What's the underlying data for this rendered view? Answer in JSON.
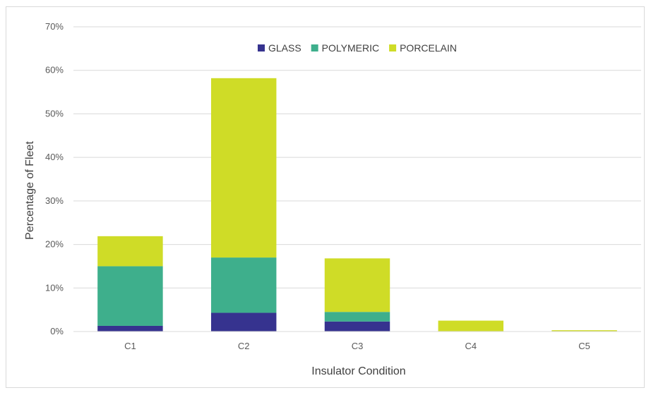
{
  "chart_data": {
    "type": "bar",
    "stacked": true,
    "categories": [
      "C1",
      "C2",
      "C3",
      "C4",
      "C5"
    ],
    "series": [
      {
        "name": "GLASS",
        "color": "#36338f",
        "values": [
          1.3,
          4.3,
          2.3,
          0.0,
          0.0
        ]
      },
      {
        "name": "POLYMERIC",
        "color": "#3eaf8c",
        "values": [
          13.7,
          12.7,
          2.2,
          0.0,
          0.0
        ]
      },
      {
        "name": "PORCELAIN",
        "color": "#cfdc27",
        "values": [
          6.9,
          41.2,
          12.3,
          2.5,
          0.3
        ]
      }
    ],
    "xlabel": "Insulator Condition",
    "ylabel": "Percentage of Fleet",
    "ylim": [
      0,
      70
    ],
    "yticks": [
      "0%",
      "10%",
      "20%",
      "30%",
      "40%",
      "50%",
      "60%",
      "70%"
    ],
    "ytick_values": [
      0,
      10,
      20,
      30,
      40,
      50,
      60,
      70
    ],
    "grid": true,
    "legend_position": "top-center"
  }
}
